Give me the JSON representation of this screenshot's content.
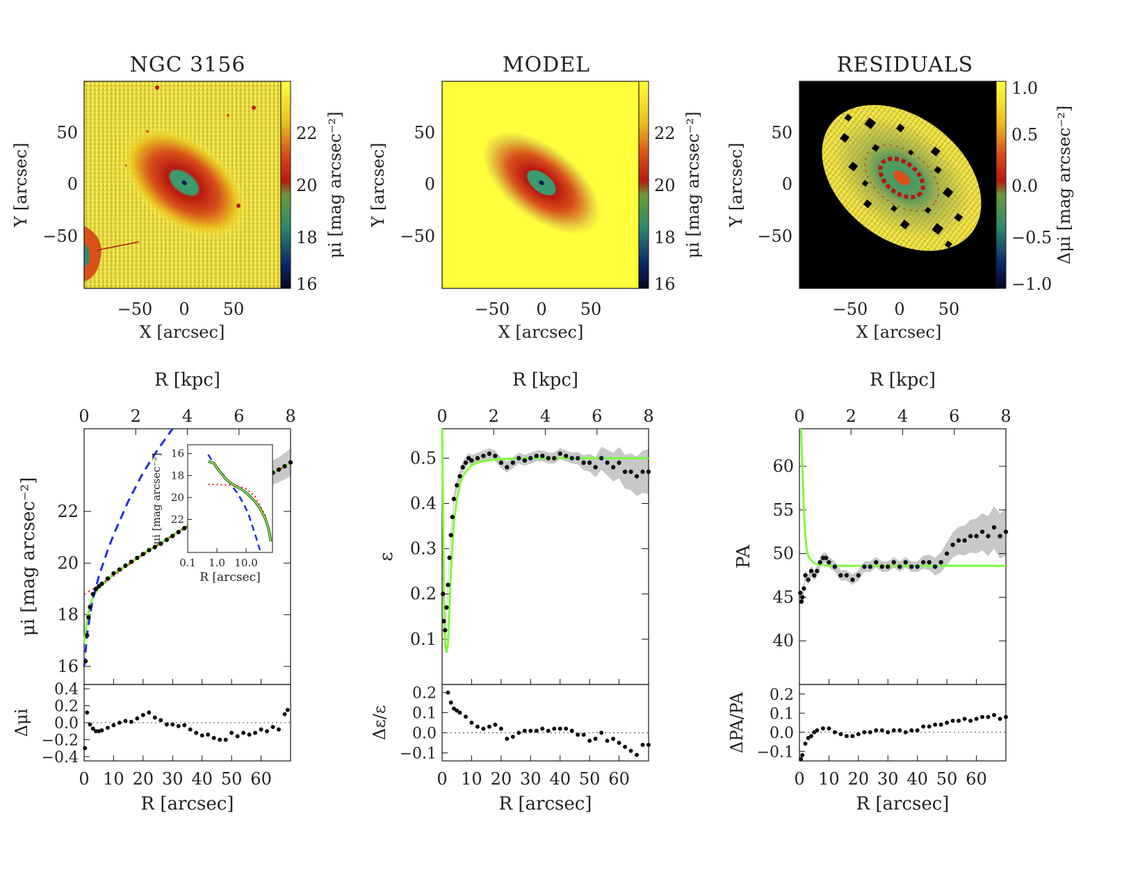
{
  "figure": {
    "titles": [
      "NGC 3156",
      "MODEL",
      "RESIDUALS"
    ],
    "colors": {
      "black": "#111111",
      "green": "#7CFC3A",
      "blue": "#1C2EE8",
      "red": "#E41A1C",
      "gray": "#C8C8C8",
      "yellow": "#FFFF3C",
      "orange": "#D8501A",
      "darkred": "#B81810",
      "teal": "#3C9A6E",
      "navy": "#0A1E5A"
    }
  },
  "images": [
    {
      "title": "NGC 3156",
      "xlabel": "X [arcsec]",
      "ylabel": "Y [arcsec]",
      "xticks": [
        "−50",
        "0",
        "50"
      ],
      "yticks": [
        "50",
        "0",
        "−50"
      ],
      "colorbar_label": "μi [mag arcsec⁻²]",
      "colorbar_ticks": [
        "22",
        "20",
        "18",
        "16"
      ]
    },
    {
      "title": "MODEL",
      "xlabel": "X [arcsec]",
      "ylabel": "Y [arcsec]",
      "xticks": [
        "−50",
        "0",
        "50"
      ],
      "yticks": [
        "50",
        "0",
        "−50"
      ],
      "colorbar_label": "μi [mag arcsec⁻²]",
      "colorbar_ticks": [
        "22",
        "20",
        "18",
        "16"
      ]
    },
    {
      "title": "RESIDUALS",
      "xlabel": "X [arcsec]",
      "ylabel": "Y [arcsec]",
      "xticks": [
        "−50",
        "0",
        "50"
      ],
      "yticks": [
        "50",
        "0",
        "−50"
      ],
      "colorbar_label": "Δμi [mag arcsec⁻²]",
      "colorbar_ticks": [
        "1.0",
        "0.5",
        "0.0",
        "−0.5",
        "−1.0"
      ]
    }
  ],
  "chart_data": [
    {
      "type": "scatter",
      "panel": "surface brightness profile",
      "top_xlabel": "R [kpc]",
      "top_xticks": [
        "0",
        "2",
        "4",
        "6",
        "8"
      ],
      "top_xlim": [
        0,
        8
      ],
      "xlabel": "R [arcsec]",
      "xlim": [
        0,
        70
      ],
      "xticks": [
        "0",
        "10",
        "20",
        "30",
        "40",
        "50",
        "60"
      ],
      "ylabel": "μi [mag arcsec⁻²]",
      "ylim": [
        15.3,
        25.2
      ],
      "yticks": [
        "16",
        "18",
        "20",
        "22"
      ],
      "ytick_values": [
        16,
        18,
        20,
        22
      ],
      "series": [
        {
          "name": "data",
          "x": [
            0.5,
            1,
            1.5,
            2,
            3,
            4,
            5,
            6,
            8,
            10,
            12,
            14,
            16,
            18,
            20,
            22,
            24,
            26,
            28,
            30,
            32,
            34,
            36,
            38,
            40,
            42,
            44,
            46,
            48,
            50,
            52,
            54,
            56,
            58,
            60,
            62,
            64,
            66,
            68,
            70
          ],
          "values": [
            16.2,
            17.2,
            17.9,
            18.3,
            18.8,
            19.0,
            19.1,
            19.2,
            19.4,
            19.6,
            19.75,
            19.9,
            20.05,
            20.2,
            20.35,
            20.5,
            20.62,
            20.75,
            20.9,
            21.05,
            21.2,
            21.35,
            21.5,
            21.62,
            21.75,
            21.9,
            22.05,
            22.2,
            22.35,
            22.5,
            22.65,
            22.8,
            22.95,
            23.1,
            23.22,
            23.35,
            23.5,
            23.62,
            23.75,
            23.9
          ]
        },
        {
          "name": "total model",
          "x": [
            0,
            1,
            2,
            3,
            5,
            8,
            10,
            15,
            20,
            25,
            30,
            35,
            40,
            45,
            50,
            55,
            60,
            65,
            70
          ],
          "values": [
            16.9,
            17.8,
            18.35,
            18.7,
            19.05,
            19.35,
            19.55,
            19.95,
            20.35,
            20.72,
            21.08,
            21.45,
            21.8,
            22.15,
            22.5,
            22.85,
            23.2,
            23.55,
            23.88
          ]
        },
        {
          "name": "bulge",
          "x": [
            0,
            1,
            2,
            3,
            5,
            8,
            10,
            15,
            20,
            25,
            30
          ],
          "values": [
            16.0,
            17.2,
            18.0,
            18.6,
            19.5,
            20.5,
            21.1,
            22.4,
            23.5,
            24.4,
            25.2
          ]
        },
        {
          "name": "disk",
          "x": [
            0,
            5,
            10,
            15,
            20,
            25,
            30,
            35,
            40,
            45,
            50,
            55,
            60,
            65,
            70
          ],
          "values": [
            18.8,
            19.1,
            19.5,
            19.92,
            20.32,
            20.7,
            21.06,
            21.42,
            21.78,
            22.12,
            22.48,
            22.83,
            23.18,
            23.53,
            23.87
          ]
        }
      ],
      "inset": {
        "xlabel": "R [arcsec]",
        "ylabel": "μi [mag arcsec⁻²]",
        "xticks": [
          "0.1",
          "1.0",
          "10.0"
        ],
        "xtick_values": [
          0.1,
          1.0,
          10.0
        ],
        "xlim": [
          0.1,
          80
        ],
        "yticks": [
          "16",
          "18",
          "20",
          "22"
        ],
        "ytick_values": [
          16,
          18,
          20,
          22
        ],
        "ylim": [
          15.2,
          25.0
        ],
        "total_x": [
          0.5,
          0.8,
          1,
          1.5,
          2,
          3,
          5,
          8,
          12,
          20,
          30,
          45,
          60,
          70
        ],
        "total_y": [
          16.7,
          16.9,
          17.3,
          17.9,
          18.3,
          18.7,
          19.05,
          19.35,
          19.75,
          20.35,
          21.0,
          21.9,
          22.9,
          24.0
        ],
        "bulge_x": [
          0.5,
          1,
          2,
          3,
          5,
          8,
          12,
          20,
          30
        ],
        "bulge_y": [
          16.1,
          17.3,
          18.2,
          18.8,
          19.6,
          20.5,
          21.5,
          23.3,
          24.8
        ],
        "disk_x": [
          0.5,
          1,
          2,
          5,
          10,
          20,
          30,
          45,
          60,
          70
        ],
        "disk_y": [
          18.8,
          18.82,
          18.86,
          18.95,
          19.2,
          19.9,
          20.7,
          21.7,
          22.8,
          23.8
        ]
      },
      "residual": {
        "ylabel": "Δμi",
        "ylim": [
          -0.45,
          0.45
        ],
        "yticks": [
          "0.4",
          "0.2",
          "0.0",
          "−0.2",
          "−0.4"
        ],
        "ytick_values": [
          0.4,
          0.2,
          0.0,
          -0.2,
          -0.4
        ],
        "x": [
          0.3,
          1,
          2,
          3,
          4,
          5,
          6,
          8,
          10,
          12,
          14,
          16,
          18,
          20,
          22,
          24,
          26,
          28,
          30,
          32,
          34,
          36,
          38,
          40,
          42,
          44,
          46,
          48,
          50,
          52,
          54,
          56,
          58,
          60,
          62,
          64,
          66,
          68,
          69
        ],
        "values": [
          -0.3,
          0.12,
          -0.02,
          -0.07,
          -0.1,
          -0.1,
          -0.09,
          -0.06,
          -0.03,
          0.0,
          0.02,
          0.01,
          0.05,
          0.09,
          0.12,
          0.06,
          0.03,
          -0.02,
          -0.02,
          -0.04,
          -0.03,
          -0.08,
          -0.12,
          -0.15,
          -0.14,
          -0.18,
          -0.2,
          -0.2,
          -0.12,
          -0.16,
          -0.12,
          -0.14,
          -0.12,
          -0.08,
          -0.1,
          -0.05,
          -0.08,
          0.1,
          0.15
        ]
      }
    },
    {
      "type": "scatter",
      "panel": "ellipticity profile",
      "top_xlabel": "R [kpc]",
      "top_xticks": [
        "0",
        "2",
        "4",
        "6",
        "8"
      ],
      "top_xlim": [
        0,
        8
      ],
      "xlabel": "R [arcsec]",
      "xlim": [
        0,
        70
      ],
      "xticks": [
        "0",
        "10",
        "20",
        "30",
        "40",
        "50",
        "60"
      ],
      "ylabel": "ε",
      "ylim": [
        0.0,
        0.565
      ],
      "yticks": [
        "0.5",
        "0.4",
        "0.3",
        "0.2",
        "0.1"
      ],
      "ytick_values": [
        0.5,
        0.4,
        0.3,
        0.2,
        0.1
      ],
      "series": [
        {
          "name": "data",
          "x": [
            0.3,
            0.6,
            1,
            1.5,
            2,
            2.5,
            3,
            3.5,
            4,
            5,
            6,
            7,
            8,
            9,
            10,
            12,
            14,
            16,
            18,
            20,
            22,
            24,
            26,
            28,
            30,
            32,
            34,
            36,
            38,
            40,
            42,
            44,
            46,
            48,
            50,
            52,
            54,
            56,
            58,
            60,
            62,
            64,
            66,
            68,
            70
          ],
          "values": [
            0.2,
            0.14,
            0.12,
            0.17,
            0.22,
            0.28,
            0.33,
            0.37,
            0.41,
            0.44,
            0.46,
            0.48,
            0.49,
            0.5,
            0.495,
            0.5,
            0.505,
            0.51,
            0.505,
            0.49,
            0.48,
            0.49,
            0.5,
            0.495,
            0.5,
            0.505,
            0.505,
            0.5,
            0.5,
            0.51,
            0.505,
            0.5,
            0.5,
            0.49,
            0.49,
            0.48,
            0.5,
            0.49,
            0.48,
            0.49,
            0.47,
            0.47,
            0.46,
            0.47,
            0.47
          ]
        },
        {
          "name": "model",
          "x": [
            0,
            0.3,
            0.6,
            1,
            1.5,
            2,
            2.3,
            2.6,
            3,
            3.5,
            4,
            5,
            6,
            7,
            8,
            10,
            12,
            15,
            20,
            25,
            30,
            40,
            50,
            60,
            70
          ],
          "values": [
            0.565,
            0.4,
            0.2,
            0.09,
            0.07,
            0.09,
            0.14,
            0.19,
            0.25,
            0.31,
            0.36,
            0.41,
            0.44,
            0.46,
            0.47,
            0.485,
            0.49,
            0.495,
            0.498,
            0.499,
            0.5,
            0.5,
            0.5,
            0.5,
            0.5
          ]
        }
      ],
      "residual": {
        "ylabel": "Δε/ε",
        "ylim": [
          -0.14,
          0.24
        ],
        "yticks": [
          "0.2",
          "0.1",
          "0.0",
          "−0.1"
        ],
        "ytick_values": [
          0.2,
          0.1,
          0.0,
          -0.1
        ],
        "x": [
          2,
          3,
          4,
          5,
          6,
          8,
          10,
          12,
          14,
          16,
          18,
          20,
          22,
          24,
          26,
          28,
          30,
          32,
          34,
          36,
          38,
          40,
          42,
          44,
          46,
          48,
          50,
          52,
          54,
          56,
          58,
          60,
          62,
          64,
          66,
          68,
          70
        ],
        "values": [
          0.2,
          0.15,
          0.12,
          0.11,
          0.1,
          0.08,
          0.05,
          0.03,
          0.02,
          0.03,
          0.04,
          0.02,
          -0.03,
          -0.02,
          0.0,
          0.01,
          0.01,
          0.01,
          0.02,
          0.01,
          0.02,
          0.02,
          0.02,
          0.01,
          -0.01,
          -0.01,
          -0.04,
          -0.03,
          0.0,
          -0.04,
          -0.03,
          -0.05,
          -0.07,
          -0.09,
          -0.11,
          -0.06,
          -0.06
        ]
      }
    },
    {
      "type": "scatter",
      "panel": "position angle profile",
      "top_xlabel": "R [kpc]",
      "top_xticks": [
        "0",
        "2",
        "4",
        "6",
        "8"
      ],
      "top_xlim": [
        0,
        8
      ],
      "xlabel": "R [arcsec]",
      "xlim": [
        0,
        70
      ],
      "xticks": [
        "0",
        "10",
        "20",
        "30",
        "40",
        "50",
        "60"
      ],
      "ylabel": "PA",
      "ylim": [
        35,
        64.3
      ],
      "yticks": [
        "60",
        "55",
        "50",
        "45",
        "40"
      ],
      "ytick_values": [
        60,
        55,
        50,
        45,
        40
      ],
      "series": [
        {
          "name": "data",
          "x": [
            0.3,
            0.7,
            1,
            1.5,
            2,
            3,
            4,
            5,
            6,
            7,
            8,
            9,
            10,
            12,
            14,
            16,
            18,
            20,
            22,
            24,
            26,
            28,
            30,
            32,
            34,
            36,
            38,
            40,
            42,
            44,
            46,
            48,
            50,
            52,
            54,
            56,
            58,
            60,
            62,
            64,
            66,
            68,
            70
          ],
          "values": [
            45.5,
            44.5,
            45,
            46,
            47.5,
            47,
            48,
            47.5,
            48,
            49,
            49.5,
            49.5,
            49,
            48.5,
            47.5,
            47.5,
            47,
            47.5,
            48.5,
            48.5,
            49,
            48.5,
            48.5,
            49,
            48.5,
            49,
            48.5,
            48.5,
            49,
            49,
            48.5,
            49,
            50,
            51,
            51.5,
            51.5,
            52,
            52,
            52.5,
            52,
            53,
            52,
            52.5
          ]
        },
        {
          "name": "model",
          "x": [
            0.3,
            0.6,
            1,
            1.5,
            2,
            2.5,
            3,
            4,
            5,
            6,
            8,
            10,
            20,
            40,
            70
          ],
          "values": [
            64.3,
            64,
            60,
            55,
            52,
            50.5,
            49.7,
            49.2,
            48.9,
            48.8,
            48.7,
            48.6,
            48.6,
            48.6,
            48.6
          ]
        }
      ],
      "residual": {
        "ylabel": "ΔPA/PA",
        "ylim": [
          -0.15,
          0.25
        ],
        "yticks": [
          "0.2",
          "0.1",
          "0.0",
          "−0.1"
        ],
        "ytick_values": [
          0.2,
          0.1,
          0.0,
          -0.1
        ],
        "x": [
          0.5,
          1,
          2,
          3,
          4,
          5,
          6,
          8,
          10,
          12,
          14,
          16,
          18,
          20,
          22,
          24,
          26,
          28,
          30,
          32,
          34,
          36,
          38,
          40,
          42,
          44,
          46,
          48,
          50,
          52,
          54,
          56,
          58,
          60,
          62,
          64,
          66,
          68,
          70
        ],
        "values": [
          -0.14,
          -0.12,
          -0.06,
          -0.03,
          -0.02,
          0.0,
          0.01,
          0.02,
          0.02,
          0.0,
          -0.01,
          -0.02,
          -0.02,
          -0.01,
          0.0,
          0.0,
          0.01,
          0.01,
          0.0,
          0.01,
          0.01,
          0.0,
          0.01,
          0.01,
          0.03,
          0.03,
          0.04,
          0.04,
          0.05,
          0.06,
          0.06,
          0.07,
          0.06,
          0.07,
          0.08,
          0.08,
          0.09,
          0.07,
          0.08
        ]
      }
    }
  ]
}
